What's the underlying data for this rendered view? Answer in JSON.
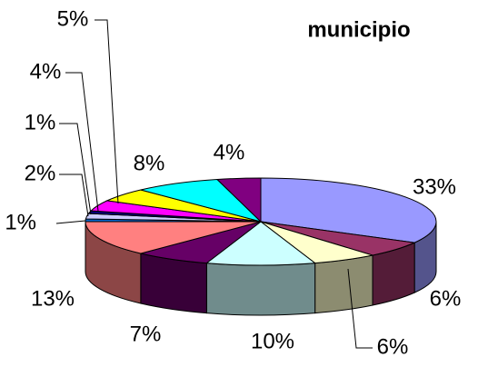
{
  "chart_data": {
    "type": "pie",
    "title": "municipio",
    "values": [
      33,
      6,
      6,
      10,
      7,
      13,
      1,
      2,
      1,
      4,
      5,
      8,
      4
    ],
    "value_labels": [
      "33%",
      "6%",
      "6%",
      "10%",
      "7%",
      "13%",
      "1%",
      "2%",
      "1%",
      "4%",
      "5%",
      "8%",
      "4%"
    ],
    "colors": [
      "#9999ff",
      "#993366",
      "#ffffcc",
      "#ccffff",
      "#660066",
      "#ff8080",
      "#0066cc",
      "#ccccff",
      "#000080",
      "#ff00ff",
      "#ffff00",
      "#00ffff",
      "#800080"
    ],
    "three_d": true
  }
}
